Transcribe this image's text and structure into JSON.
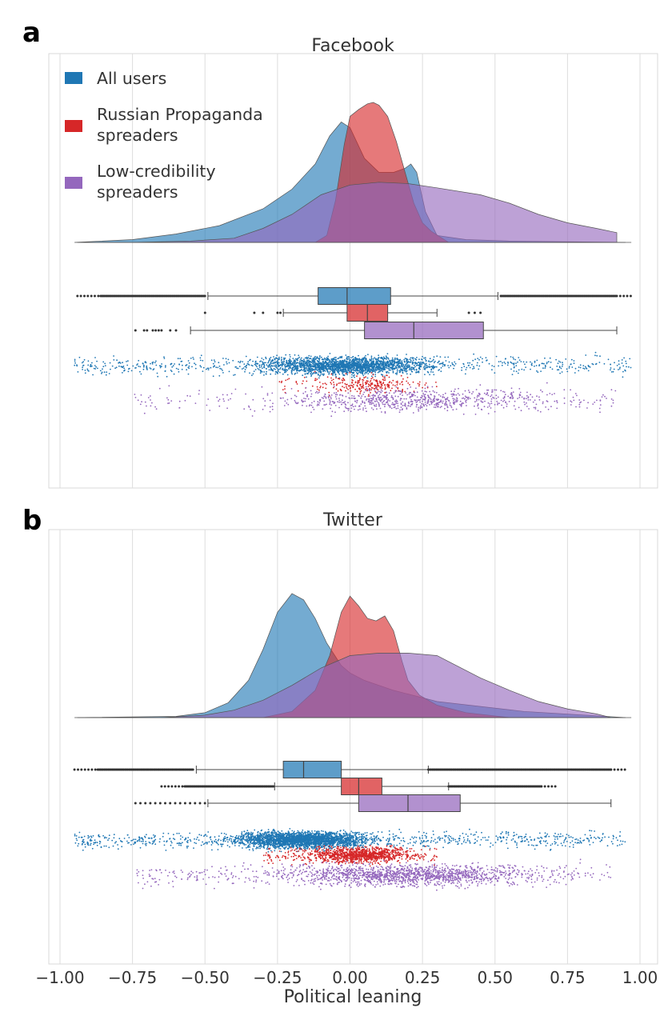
{
  "chart_data": {
    "type": "raincloud",
    "xlabel": "Political leaning",
    "xlim": [
      -1.05,
      1.05
    ],
    "xticks": [
      -1.0,
      -0.75,
      -0.5,
      -0.25,
      0.0,
      0.25,
      0.5,
      0.75,
      1.0
    ],
    "xtick_labels": [
      "−1.00",
      "−0.75",
      "−0.50",
      "−0.25",
      "0.00",
      "0.25",
      "0.50",
      "0.75",
      "1.00"
    ],
    "grid": true,
    "legend": {
      "location": "top-left",
      "entries": [
        {
          "label_lines": [
            "All users"
          ],
          "color": "#1f77b4"
        },
        {
          "label_lines": [
            "Russian Propaganda",
            "spreaders"
          ],
          "color": "#d62728"
        },
        {
          "label_lines": [
            "Low-credibility",
            "spreaders"
          ],
          "color": "#9467bd"
        }
      ]
    },
    "panels": [
      {
        "letter": "a",
        "title": "Facebook",
        "series": [
          {
            "name": "All users",
            "color": "#1f77b4",
            "density_x": [
              -0.95,
              -0.75,
              -0.6,
              -0.45,
              -0.3,
              -0.2,
              -0.12,
              -0.07,
              -0.03,
              0.0,
              0.05,
              0.1,
              0.15,
              0.19,
              0.21,
              0.23,
              0.26,
              0.3,
              0.4,
              0.55,
              0.95
            ],
            "density_y": [
              0.0,
              0.02,
              0.06,
              0.12,
              0.24,
              0.38,
              0.56,
              0.76,
              0.86,
              0.82,
              0.6,
              0.5,
              0.5,
              0.53,
              0.56,
              0.5,
              0.22,
              0.05,
              0.02,
              0.01,
              0.0
            ],
            "box": {
              "whisker_low": -0.49,
              "q1": -0.11,
              "median": -0.01,
              "q3": 0.14,
              "whisker_high": 0.51
            },
            "outliers": {
              "low": [
                -0.94,
                -0.5
              ],
              "high": [
                0.52,
                0.97
              ]
            },
            "scatter_range": [
              -0.95,
              0.97
            ]
          },
          {
            "name": "Russian Propaganda spreaders",
            "color": "#d62728",
            "density_x": [
              -0.12,
              -0.08,
              -0.05,
              -0.02,
              0.0,
              0.03,
              0.06,
              0.08,
              0.1,
              0.13,
              0.16,
              0.19,
              0.22,
              0.25,
              0.28,
              0.31,
              0.34
            ],
            "density_y": [
              0.0,
              0.05,
              0.3,
              0.7,
              0.9,
              0.95,
              0.99,
              1.0,
              0.98,
              0.9,
              0.72,
              0.5,
              0.28,
              0.14,
              0.08,
              0.04,
              0.0
            ],
            "box": {
              "whisker_low": -0.23,
              "q1": -0.01,
              "median": 0.06,
              "q3": 0.13,
              "whisker_high": 0.3
            },
            "outliers": {
              "points": [
                -0.5,
                -0.33,
                -0.3,
                -0.25,
                -0.24,
                0.41,
                0.43,
                0.45
              ]
            },
            "scatter_range": [
              -0.25,
              0.3
            ]
          },
          {
            "name": "Low-credibility spreaders",
            "color": "#9467bd",
            "density_x": [
              -0.75,
              -0.55,
              -0.4,
              -0.3,
              -0.2,
              -0.1,
              0.0,
              0.1,
              0.2,
              0.3,
              0.45,
              0.55,
              0.65,
              0.75,
              0.85,
              0.92,
              0.92
            ],
            "density_y": [
              0.0,
              0.01,
              0.03,
              0.1,
              0.2,
              0.34,
              0.41,
              0.43,
              0.42,
              0.39,
              0.34,
              0.28,
              0.2,
              0.14,
              0.1,
              0.07,
              0.0
            ],
            "box": {
              "whisker_low": -0.55,
              "q1": 0.05,
              "median": 0.22,
              "q3": 0.46,
              "whisker_high": 0.92
            },
            "outliers": {
              "points": [
                -0.74,
                -0.71,
                -0.7,
                -0.68,
                -0.67,
                -0.66,
                -0.65,
                -0.62,
                -0.6
              ]
            },
            "scatter_range": [
              -0.75,
              0.92
            ]
          }
        ]
      },
      {
        "letter": "b",
        "title": "Twitter",
        "series": [
          {
            "name": "All users",
            "color": "#1f77b4",
            "density_x": [
              -0.95,
              -0.6,
              -0.5,
              -0.42,
              -0.35,
              -0.3,
              -0.25,
              -0.2,
              -0.16,
              -0.12,
              -0.08,
              -0.03,
              0.0,
              0.05,
              0.15,
              0.3,
              0.6,
              0.95
            ],
            "density_y": [
              0.0,
              0.01,
              0.04,
              0.12,
              0.3,
              0.55,
              0.85,
              1.0,
              0.95,
              0.8,
              0.6,
              0.42,
              0.36,
              0.3,
              0.22,
              0.13,
              0.05,
              0.0
            ],
            "box": {
              "whisker_low": -0.53,
              "q1": -0.23,
              "median": -0.16,
              "q3": -0.03,
              "whisker_high": 0.27
            },
            "outliers": {
              "low": [
                -0.95,
                -0.54
              ],
              "high": [
                0.27,
                0.95
              ]
            },
            "scatter_range": [
              -0.95,
              0.95
            ]
          },
          {
            "name": "Russian Propaganda spreaders",
            "color": "#d62728",
            "density_x": [
              -0.3,
              -0.2,
              -0.12,
              -0.07,
              -0.03,
              0.0,
              0.03,
              0.06,
              0.09,
              0.12,
              0.15,
              0.18,
              0.2,
              0.24,
              0.3,
              0.4,
              0.55
            ],
            "density_y": [
              0.0,
              0.05,
              0.22,
              0.5,
              0.85,
              0.98,
              0.9,
              0.8,
              0.78,
              0.82,
              0.7,
              0.45,
              0.3,
              0.18,
              0.1,
              0.04,
              0.0
            ],
            "box": {
              "whisker_low": -0.26,
              "q1": -0.03,
              "median": 0.03,
              "q3": 0.11,
              "whisker_high": 0.34
            },
            "outliers": {
              "low": [
                -0.65,
                -0.26
              ],
              "high": [
                0.34,
                0.71
              ]
            },
            "scatter_range": [
              -0.3,
              0.3
            ]
          },
          {
            "name": "Low-credibility spreaders",
            "color": "#9467bd",
            "density_x": [
              -0.65,
              -0.5,
              -0.4,
              -0.3,
              -0.2,
              -0.1,
              0.0,
              0.1,
              0.2,
              0.3,
              0.35,
              0.45,
              0.55,
              0.65,
              0.75,
              0.85,
              0.9
            ],
            "density_y": [
              0.0,
              0.02,
              0.06,
              0.14,
              0.26,
              0.4,
              0.5,
              0.52,
              0.52,
              0.5,
              0.44,
              0.32,
              0.22,
              0.13,
              0.07,
              0.03,
              0.0
            ],
            "box": {
              "whisker_low": -0.49,
              "q1": 0.03,
              "median": 0.2,
              "q3": 0.38,
              "whisker_high": 0.9
            },
            "outliers": {
              "low": [
                -0.74,
                -0.5
              ]
            },
            "scatter_range": [
              -0.74,
              0.9
            ]
          }
        ]
      }
    ]
  }
}
